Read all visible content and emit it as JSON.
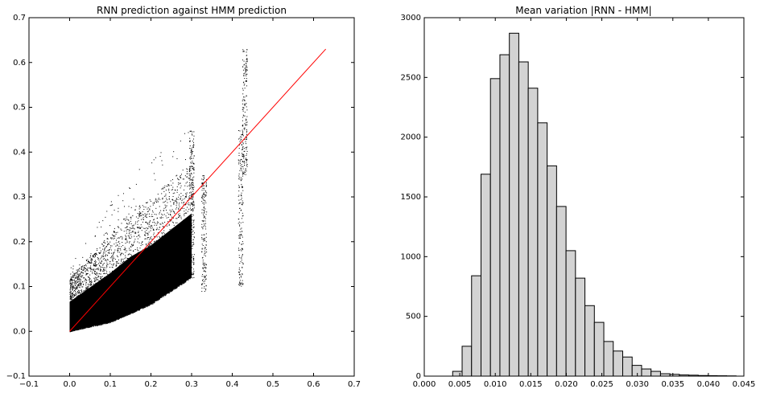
{
  "chart_data": [
    {
      "type": "scatter",
      "title": "RNN prediction against HMM prediction",
      "xlabel": "",
      "ylabel": "",
      "xlim": [
        -0.1,
        0.7
      ],
      "ylim": [
        -0.1,
        0.7
      ],
      "xticks": [
        "−0.1",
        "0.0",
        "0.1",
        "0.2",
        "0.3",
        "0.4",
        "0.5",
        "0.6",
        "0.7"
      ],
      "yticks": [
        "−0.1",
        "0.0",
        "0.1",
        "0.2",
        "0.3",
        "0.4",
        "0.5",
        "0.6",
        "0.7"
      ],
      "grid": false,
      "point_color": "#000000",
      "reference_line": {
        "x": [
          0.0,
          0.63
        ],
        "y": [
          0.0,
          0.63
        ],
        "color": "#ff0000"
      },
      "cloud_envelope": {
        "x": [
          0.0,
          0.05,
          0.1,
          0.15,
          0.2,
          0.25,
          0.3
        ],
        "y_low": [
          0.0,
          0.01,
          0.02,
          0.04,
          0.06,
          0.09,
          0.12
        ],
        "y_high": [
          0.12,
          0.17,
          0.22,
          0.27,
          0.3,
          0.34,
          0.38
        ]
      },
      "vertical_streaks": [
        {
          "x": 0.3,
          "y_min": 0.15,
          "y_max": 0.45
        },
        {
          "x": 0.33,
          "y_min": 0.09,
          "y_max": 0.35
        },
        {
          "x": 0.42,
          "y_min": 0.1,
          "y_max": 0.45
        },
        {
          "x": 0.43,
          "y_min": 0.35,
          "y_max": 0.63
        }
      ]
    },
    {
      "type": "bar",
      "title": "Mean variation |RNN - HMM|",
      "xlabel": "",
      "ylabel": "",
      "xlim": [
        0.0,
        0.045
      ],
      "ylim": [
        0,
        3000
      ],
      "xticks": [
        "0.000",
        "0.005",
        "0.010",
        "0.015",
        "0.020",
        "0.025",
        "0.030",
        "0.035",
        "0.040",
        "0.045"
      ],
      "yticks": [
        "0",
        "500",
        "1000",
        "1500",
        "2000",
        "2500",
        "3000"
      ],
      "grid": false,
      "bar_color": "#d3d3d3",
      "bin_start": 0.004,
      "bin_width": 0.00133,
      "values": [
        40,
        250,
        840,
        1690,
        2490,
        2690,
        2870,
        2630,
        2410,
        2120,
        1760,
        1420,
        1050,
        820,
        590,
        450,
        290,
        210,
        160,
        90,
        60,
        40,
        20,
        15,
        10,
        8,
        5,
        4,
        3,
        2
      ]
    }
  ]
}
